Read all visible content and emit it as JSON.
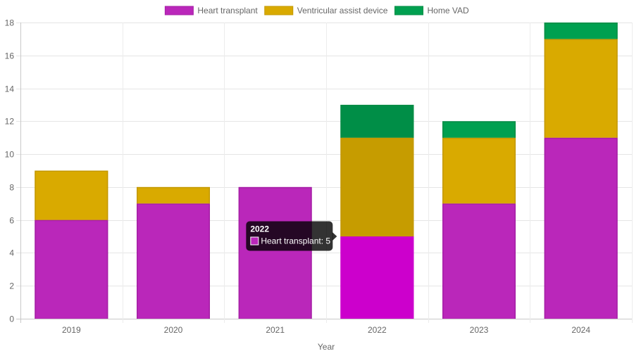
{
  "chart_data": {
    "type": "bar",
    "stacked": true,
    "categories": [
      "2019",
      "2020",
      "2021",
      "2022",
      "2023",
      "2024"
    ],
    "series": [
      {
        "name": "Heart transplant",
        "color": "#BA27BA",
        "border": "#A51FA5",
        "values": [
          6,
          7,
          8,
          5,
          7,
          11
        ]
      },
      {
        "name": "Ventricular assist device",
        "color": "#D9AA00",
        "border": "#C39800",
        "values": [
          3,
          1,
          0,
          6,
          4,
          6
        ]
      },
      {
        "name": "Home VAD",
        "color": "#00A050",
        "border": "#008C44",
        "values": [
          0,
          0,
          0,
          2,
          1,
          1
        ]
      }
    ],
    "xlabel": "Year",
    "ylabel": "",
    "ylim": [
      0,
      18
    ],
    "yticks": [
      0,
      2,
      4,
      6,
      8,
      10,
      12,
      14,
      16,
      18
    ],
    "grid": true,
    "legend": "top-center",
    "highlight": {
      "category_index": 3,
      "series_index": 0,
      "color": "#CC00CC",
      "dim_color_1": "#C69C00",
      "dim_color_2": "#008E47"
    },
    "tooltip": {
      "title": "2022",
      "label": "Heart transplant: 5"
    }
  }
}
